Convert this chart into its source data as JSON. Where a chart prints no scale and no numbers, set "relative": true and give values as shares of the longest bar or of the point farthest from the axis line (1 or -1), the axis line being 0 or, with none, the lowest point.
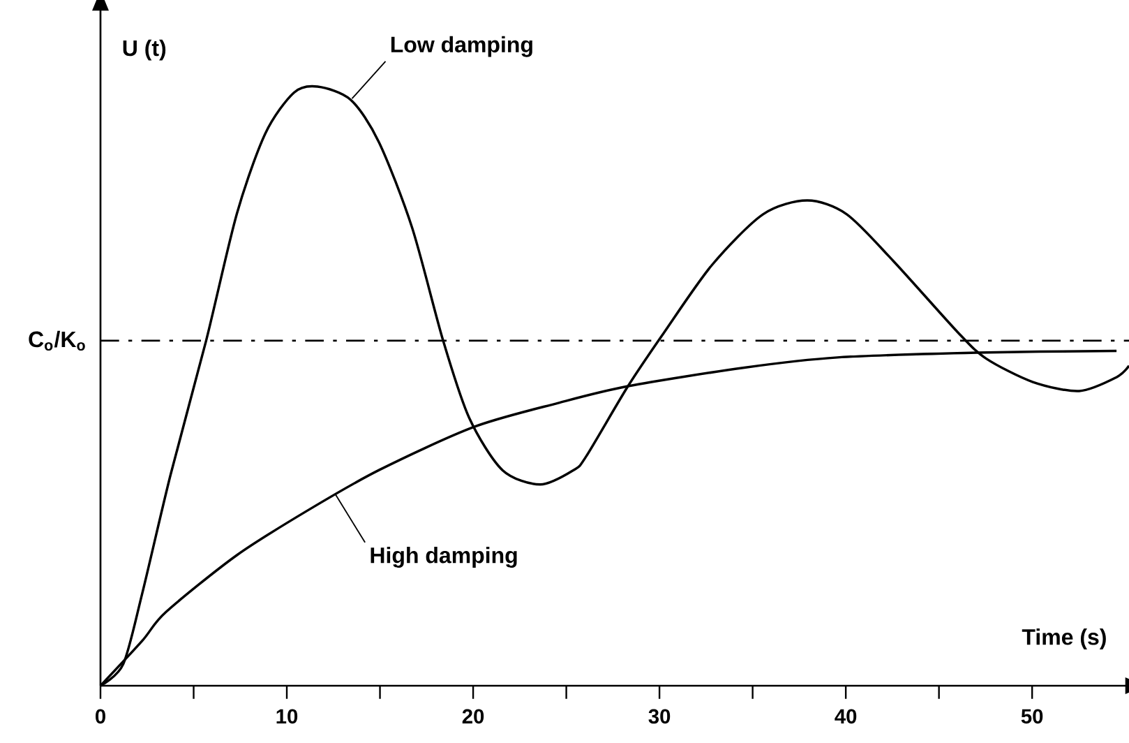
{
  "chart_data": {
    "type": "line",
    "relative": true,
    "xlabel": "Time (s)",
    "ylabel": "U (t)",
    "xlim": [
      0,
      55.2
    ],
    "xticks": [
      0,
      {
        "value": 5,
        "label": null
      },
      10,
      {
        "value": 15,
        "label": null
      },
      20,
      {
        "value": 25,
        "label": null
      },
      30,
      {
        "value": 35,
        "label": null
      },
      40,
      {
        "value": 45,
        "label": null
      },
      50
    ],
    "series": [
      {
        "color": "#000000",
        "x": [
          0,
          1.22,
          2.24,
          3.76,
          5.67,
          7.32,
          8.85,
          10.38,
          11.65,
          13.43,
          14.95,
          16.73,
          18.39,
          19.79,
          21.57,
          23.6,
          25.39,
          26.07,
          28.31,
          30.19,
          32.81,
          35.56,
          37.93,
          40.05,
          42.55,
          46.04,
          47.54,
          50.04,
          52.53,
          54.53,
          55.2
        ],
        "values": [
          0,
          0.036,
          0.154,
          0.352,
          0.576,
          0.788,
          0.922,
          0.99,
          1.0,
          0.978,
          0.907,
          0.764,
          0.576,
          0.447,
          0.36,
          0.336,
          0.36,
          0.383,
          0.5,
          0.587,
          0.702,
          0.787,
          0.81,
          0.787,
          0.709,
          0.589,
          0.546,
          0.507,
          0.492,
          0.515,
          0.534
        ]
      },
      {
        "color": "#000000",
        "x": [
          0,
          2.24,
          3.51,
          7.32,
          11.14,
          14.95,
          20.04,
          24.57,
          28.31,
          34.55,
          39.55,
          47.04,
          54.53
        ],
        "values": [
          0,
          0.075,
          0.123,
          0.218,
          0.293,
          0.36,
          0.432,
          0.472,
          0.5,
          0.531,
          0.548,
          0.556,
          0.559
        ]
      }
    ],
    "ref_lines": [
      {
        "axis": "y",
        "value": 0.576,
        "label": "C$_{o}$/K$_{o}$",
        "line_style": "dashdot",
        "color": "#000000"
      }
    ],
    "annotations": [
      {
        "text": "Low damping",
        "x": 13.5,
        "y": 0.98
      },
      {
        "text": "High damping",
        "x": 12.6,
        "y": 0.32
      }
    ]
  }
}
